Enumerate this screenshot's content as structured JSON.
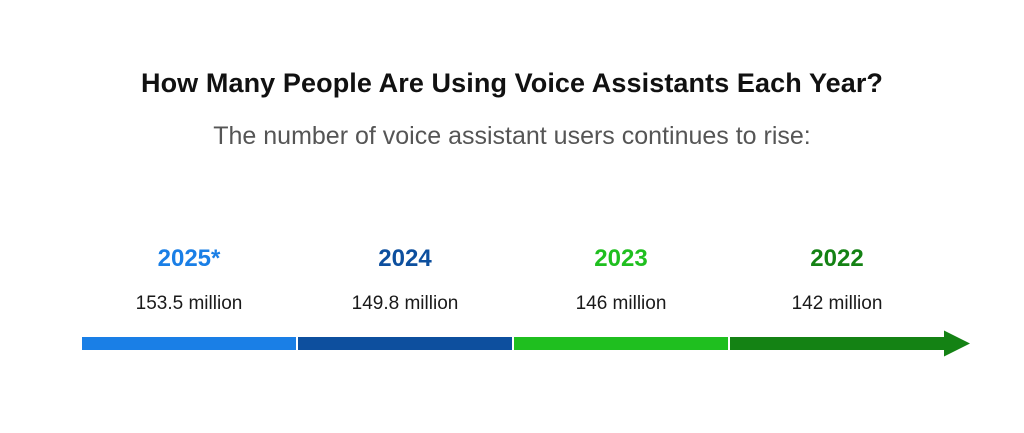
{
  "title": "How Many People Are Using Voice Assistants Each Year?",
  "subtitle": "The number of voice assistant users continues to rise:",
  "chart_data": {
    "type": "timeline",
    "unit": "million",
    "segments": [
      {
        "year_label": "2025*",
        "value": 153.5,
        "value_label": "153.5 million",
        "color": "#1a7fe6"
      },
      {
        "year_label": "2024",
        "value": 149.8,
        "value_label": "149.8 million",
        "color": "#0d4f9e"
      },
      {
        "year_label": "2023",
        "value": 146,
        "value_label": "146 million",
        "color": "#1fbf1f"
      },
      {
        "year_label": "2022",
        "value": 142,
        "value_label": "142 million",
        "color": "#148214"
      }
    ],
    "arrow_direction": "right"
  }
}
